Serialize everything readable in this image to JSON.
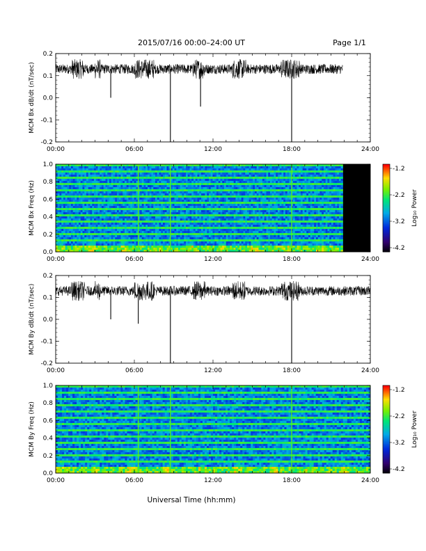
{
  "header": {
    "title": "2015/07/16  00:00–24:00 UT",
    "page": "Page 1/1"
  },
  "footer": {
    "xlabel": "Universal Time (hh:mm)"
  },
  "colorbar": {
    "label": "Log₁₀ Power",
    "ticks": [
      "-1.2",
      "-2.2",
      "-3.2",
      "-4.2"
    ],
    "range": [
      -4.2,
      -1.2
    ]
  },
  "chart_data": [
    {
      "type": "line",
      "ylabel": "MCM Bx dB/dt (nT/sec)",
      "xlim": [
        0,
        24
      ],
      "ylim": [
        -0.2,
        0.2
      ],
      "x_ticks": [
        "00:00",
        "06:00",
        "12:00",
        "18:00",
        "24:00"
      ],
      "y_ticks": [
        "0.2",
        "0.1",
        "0.0",
        "-0.1",
        "-0.2"
      ],
      "baseline": 0.13,
      "data_end_hour": 21.9,
      "spikes": [
        {
          "x": 4.2,
          "y": 0.0
        },
        {
          "x": 8.75,
          "y": -0.2
        },
        {
          "x": 11.05,
          "y": -0.04
        },
        {
          "x": 18.0,
          "y": -0.2
        }
      ]
    },
    {
      "type": "heatmap",
      "ylabel": "MCM Bx Freq (Hz)",
      "xlim": [
        0,
        24
      ],
      "ylim": [
        0,
        1.0
      ],
      "x_ticks": [
        "00:00",
        "06:00",
        "12:00",
        "18:00",
        "24:00"
      ],
      "y_ticks": [
        "1.0",
        "0.8",
        "0.6",
        "0.4",
        "0.2",
        "0.0"
      ],
      "zlim": [
        -4.2,
        -1.2
      ],
      "data_end_hour": 21.9
    },
    {
      "type": "line",
      "ylabel": "MCM By dB/dt (nT/sec)",
      "xlim": [
        0,
        24
      ],
      "ylim": [
        -0.2,
        0.2
      ],
      "x_ticks": [
        "00:00",
        "06:00",
        "12:00",
        "18:00",
        "24:00"
      ],
      "y_ticks": [
        "0.2",
        "0.1",
        "0.0",
        "-0.1",
        "-0.2"
      ],
      "baseline": 0.13,
      "data_end_hour": 24,
      "spikes": [
        {
          "x": 4.2,
          "y": 0.0
        },
        {
          "x": 6.3,
          "y": -0.02
        },
        {
          "x": 8.75,
          "y": -0.2
        },
        {
          "x": 18.0,
          "y": -0.2
        }
      ]
    },
    {
      "type": "heatmap",
      "ylabel": "MCM By Freq (Hz)",
      "xlim": [
        0,
        24
      ],
      "ylim": [
        0,
        1.0
      ],
      "x_ticks": [
        "00:00",
        "06:00",
        "12:00",
        "18:00",
        "24:00"
      ],
      "y_ticks": [
        "1.0",
        "0.8",
        "0.6",
        "0.4",
        "0.2",
        "0.0"
      ],
      "zlim": [
        -4.2,
        -1.2
      ],
      "data_end_hour": 24
    }
  ]
}
